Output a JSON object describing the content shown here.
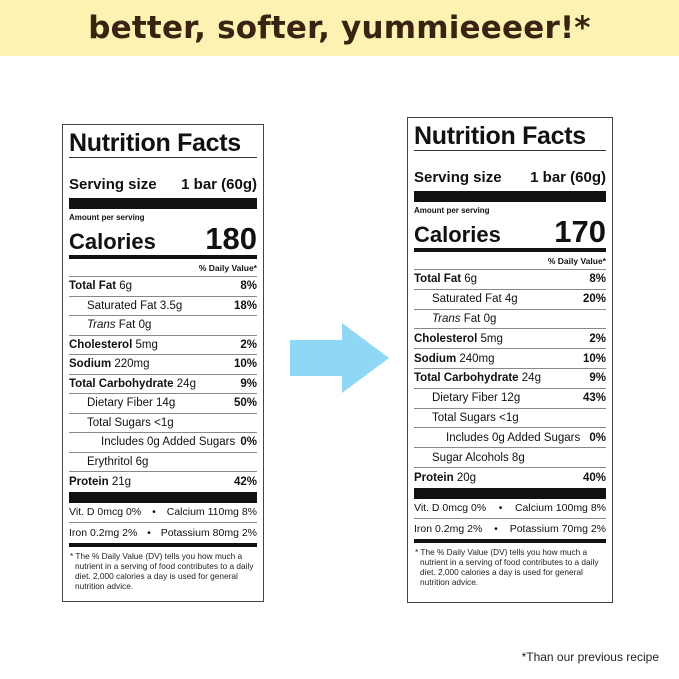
{
  "banner": {
    "title": "better, softer, yummieeeer!*"
  },
  "footnote_star": "*Than our previous recipe",
  "colors": {
    "banner_bg": "#fdf2b2",
    "banner_text": "#3b2311",
    "arrow": "#8fd8f5"
  },
  "arrow_icon": "arrow-right-icon",
  "labels": [
    {
      "title": "Nutrition Facts",
      "serving_label": "Serving size",
      "serving_value": "1 bar (60g)",
      "amount_per_serving": "Amount per serving",
      "calories_label": "Calories",
      "calories_value": "180",
      "dv_header": "% Daily Value*",
      "rows": [
        {
          "label": "Total Fat",
          "amount": "6g",
          "dv": "8%",
          "bold": true,
          "indent": 0
        },
        {
          "label": "Saturated Fat",
          "amount": "3.5g",
          "dv": "18%",
          "indent": 1
        },
        {
          "italic": "Trans",
          "label": " Fat",
          "amount": "0g",
          "dv": "",
          "indent": 1
        },
        {
          "label": "Cholesterol",
          "amount": "5mg",
          "dv": "2%",
          "bold": true,
          "indent": 0
        },
        {
          "label": "Sodium",
          "amount": "220mg",
          "dv": "10%",
          "bold": true,
          "indent": 0
        },
        {
          "label": "Total Carbohydrate",
          "amount": "24g",
          "dv": "9%",
          "bold": true,
          "indent": 0
        },
        {
          "label": "Dietary Fiber",
          "amount": "14g",
          "dv": "50%",
          "indent": 1
        },
        {
          "label": "Total Sugars",
          "amount": "<1g",
          "dv": "",
          "indent": 1
        },
        {
          "label": "Includes 0g Added Sugars",
          "amount": "",
          "dv": "0%",
          "indent": 2
        },
        {
          "label": "Erythritol",
          "amount": "6g",
          "dv": "",
          "indent": 1
        },
        {
          "label": "Protein",
          "amount": "21g",
          "dv": "42%",
          "bold": true,
          "indent": 0
        }
      ],
      "micros": [
        {
          "left": "Vit. D 0mcg 0%",
          "sep": "•",
          "right": "Calcium 110mg 8%"
        },
        {
          "left": "Iron 0.2mg 2%",
          "sep": "•",
          "right": "Potassium 80mg 2%"
        }
      ],
      "footnote": "* The % Daily Value (DV) tells you how much a nutrient in a serving of food contributes to a daily diet. 2,000 calories a day is used for general nutrition advice."
    },
    {
      "title": "Nutrition Facts",
      "serving_label": "Serving size",
      "serving_value": "1 bar (60g)",
      "amount_per_serving": "Amount per serving",
      "calories_label": "Calories",
      "calories_value": "170",
      "dv_header": "% Daily Value*",
      "rows": [
        {
          "label": "Total Fat",
          "amount": "6g",
          "dv": "8%",
          "bold": true,
          "indent": 0
        },
        {
          "label": "Saturated Fat",
          "amount": "4g",
          "dv": "20%",
          "indent": 1
        },
        {
          "italic": "Trans",
          "label": " Fat",
          "amount": "0g",
          "dv": "",
          "indent": 1
        },
        {
          "label": "Cholesterol",
          "amount": "5mg",
          "dv": "2%",
          "bold": true,
          "indent": 0
        },
        {
          "label": "Sodium",
          "amount": "240mg",
          "dv": "10%",
          "bold": true,
          "indent": 0
        },
        {
          "label": "Total Carbohydrate",
          "amount": "24g",
          "dv": "9%",
          "bold": true,
          "indent": 0
        },
        {
          "label": "Dietary Fiber",
          "amount": "12g",
          "dv": "43%",
          "indent": 1
        },
        {
          "label": "Total Sugars",
          "amount": "<1g",
          "dv": "",
          "indent": 1
        },
        {
          "label": "Includes 0g Added Sugars",
          "amount": "",
          "dv": "0%",
          "indent": 2
        },
        {
          "label": "Sugar Alcohols",
          "amount": "8g",
          "dv": "",
          "indent": 1
        },
        {
          "label": "Protein",
          "amount": "20g",
          "dv": "40%",
          "bold": true,
          "indent": 0
        }
      ],
      "micros": [
        {
          "left": "Vit. D 0mcg 0%",
          "sep": "•",
          "right": "Calcium 100mg 8%"
        },
        {
          "left": "Iron 0.2mg 2%",
          "sep": "•",
          "right": "Potassium 70mg 2%"
        }
      ],
      "footnote": "* The % Daily Value (DV) tells you how much a nutrient in a serving of food contributes to a daily diet. 2,000 calories a day is used for general nutrition advice."
    }
  ]
}
